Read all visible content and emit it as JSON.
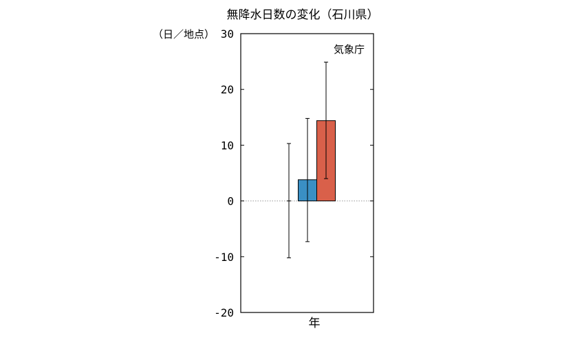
{
  "chart_data": {
    "type": "bar",
    "title": "無降水日数の変化（石川県）",
    "ylabel": "（日／地点）",
    "source": "気象庁",
    "categories": [
      "年"
    ],
    "ylim": [
      -20,
      30
    ],
    "yticks": [
      30,
      20,
      10,
      0,
      -10,
      -20
    ],
    "ytick_labels": [
      "30",
      "20",
      "10",
      "0",
      "-10",
      "-20"
    ],
    "grid": false,
    "zero_line": true,
    "series": [
      {
        "color": "#ffffff",
        "values": [
          0.0
        ],
        "error_low": [
          -10.2
        ],
        "error_high": [
          10.3
        ]
      },
      {
        "color": "#3a8fc4",
        "values": [
          3.8
        ],
        "error_low": [
          -7.3
        ],
        "error_high": [
          14.8
        ]
      },
      {
        "color": "#d9604a",
        "values": [
          14.4
        ],
        "error_low": [
          4.0
        ],
        "error_high": [
          24.9
        ]
      }
    ]
  }
}
